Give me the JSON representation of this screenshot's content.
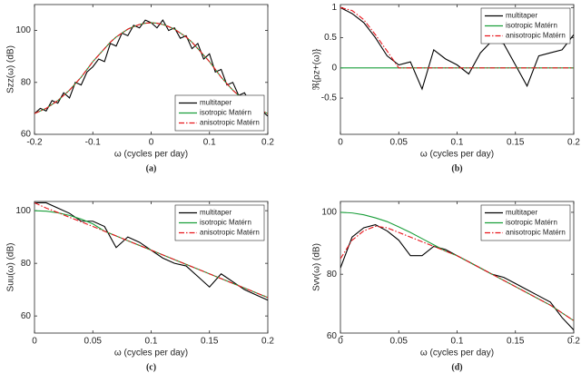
{
  "chart_data": [
    {
      "type": "line",
      "caption": "(a)",
      "xlabel": "ω (cycles per day)",
      "ylabel": "Szz(ω) (dB)",
      "x": [
        -0.2,
        -0.19,
        -0.18,
        -0.17,
        -0.16,
        -0.15,
        -0.14,
        -0.13,
        -0.12,
        -0.11,
        -0.1,
        -0.09,
        -0.08,
        -0.07,
        -0.06,
        -0.05,
        -0.04,
        -0.03,
        -0.02,
        -0.01,
        0,
        0.01,
        0.02,
        0.03,
        0.04,
        0.05,
        0.06,
        0.07,
        0.08,
        0.09,
        0.1,
        0.11,
        0.12,
        0.13,
        0.14,
        0.15,
        0.16,
        0.17,
        0.18,
        0.19,
        0.2
      ],
      "series": [
        {
          "name": "multitaper",
          "color": "#000000",
          "linestyle": "solid",
          "values": [
            68,
            70,
            69,
            73,
            72,
            76,
            74,
            80,
            79,
            84,
            86,
            89,
            88,
            95,
            94,
            99,
            98,
            102,
            101,
            104,
            103,
            101,
            104,
            100,
            101,
            97,
            98,
            93,
            95,
            89,
            91,
            84,
            85,
            79,
            80,
            75,
            76,
            72,
            72,
            69,
            67
          ]
        },
        {
          "name": "isotropic Matérn",
          "color": "#1a9e3a",
          "linestyle": "solid",
          "values": [
            68,
            69,
            70,
            71.5,
            73,
            75,
            77,
            79.5,
            82,
            85,
            88,
            90.5,
            93,
            95.5,
            97.5,
            99,
            100.5,
            101.5,
            102.3,
            102.8,
            103,
            102.8,
            102.3,
            101.5,
            100.5,
            99,
            97.5,
            95.5,
            93,
            90.5,
            88,
            85,
            82,
            79.5,
            77,
            75,
            73,
            71.5,
            70,
            69,
            68
          ]
        },
        {
          "name": "anisotropic Matérn",
          "color": "#e8161c",
          "linestyle": "dashdot",
          "values": [
            68,
            69,
            70,
            71.5,
            73,
            75,
            77,
            79.5,
            82,
            85,
            88,
            90.5,
            93,
            95.5,
            97.5,
            99,
            100.5,
            101.5,
            102.3,
            102.8,
            103,
            102.8,
            102.3,
            101.5,
            100.5,
            99,
            97.5,
            95.5,
            93,
            90.5,
            88,
            85,
            82,
            79.5,
            77,
            75,
            73,
            71.5,
            70,
            69,
            68
          ]
        }
      ],
      "xlim": [
        -0.2,
        0.2
      ],
      "ylim": [
        60,
        110
      ],
      "xticks": [
        -0.2,
        -0.1,
        0,
        0.1,
        0.2
      ],
      "yticks": [
        60,
        80,
        100
      ],
      "legend": "lower right"
    },
    {
      "type": "line",
      "caption": "(b)",
      "xlabel": "ω (cycles per day)",
      "ylabel": "ℜ{ρz+(ω)}",
      "x": [
        0,
        0.01,
        0.02,
        0.03,
        0.04,
        0.05,
        0.06,
        0.07,
        0.08,
        0.09,
        0.1,
        0.11,
        0.12,
        0.13,
        0.14,
        0.15,
        0.16,
        0.17,
        0.18,
        0.19,
        0.2
      ],
      "series": [
        {
          "name": "multitaper",
          "color": "#000000",
          "linestyle": "solid",
          "values": [
            1,
            0.9,
            0.75,
            0.5,
            0.2,
            0.05,
            0.1,
            -0.35,
            0.3,
            0.15,
            0.05,
            -0.1,
            0.25,
            0.45,
            0.4,
            0.05,
            -0.3,
            0.2,
            0.25,
            0.3,
            0.55
          ]
        },
        {
          "name": "isotropic Matérn",
          "color": "#1a9e3a",
          "linestyle": "solid",
          "values": [
            0,
            0,
            0,
            0,
            0,
            0,
            0,
            0,
            0,
            0,
            0,
            0,
            0,
            0,
            0,
            0,
            0,
            0,
            0,
            0,
            0
          ]
        },
        {
          "name": "anisotropic Matérn",
          "color": "#e8161c",
          "linestyle": "dashdot",
          "values": [
            1,
            0.95,
            0.8,
            0.55,
            0.28,
            0,
            0,
            0,
            0,
            0,
            0,
            0,
            0,
            0,
            0,
            0,
            0,
            0,
            0,
            0,
            0
          ]
        }
      ],
      "xlim": [
        0,
        0.2
      ],
      "ylim": [
        -1.1,
        1.05
      ],
      "xticks": [
        0,
        0.05,
        0.1,
        0.15,
        0.2
      ],
      "yticks": [
        -0.5,
        0,
        0.5,
        1
      ],
      "legend": "upper right"
    },
    {
      "type": "line",
      "caption": "(c)",
      "xlabel": "ω (cycles per day)",
      "ylabel": "Suu(ω) (dB)",
      "x": [
        0,
        0.01,
        0.02,
        0.03,
        0.04,
        0.05,
        0.06,
        0.07,
        0.08,
        0.09,
        0.1,
        0.11,
        0.12,
        0.13,
        0.14,
        0.15,
        0.16,
        0.17,
        0.18,
        0.19,
        0.2
      ],
      "series": [
        {
          "name": "multitaper",
          "color": "#000000",
          "linestyle": "solid",
          "values": [
            103,
            103,
            101,
            99,
            96,
            96,
            94,
            86,
            90,
            88,
            85,
            82,
            80,
            79,
            75,
            71,
            76,
            73,
            70,
            68,
            66
          ]
        },
        {
          "name": "isotropic Matérn",
          "color": "#1a9e3a",
          "linestyle": "solid",
          "values": [
            100,
            99.8,
            99.2,
            98.2,
            96.8,
            95,
            92.2,
            90.4,
            88.6,
            86.8,
            85,
            83.2,
            81.4,
            79.6,
            77.8,
            76,
            74.2,
            72.4,
            70.6,
            68.8,
            67
          ]
        },
        {
          "name": "anisotropic Matérn",
          "color": "#e8161c",
          "linestyle": "dashdot",
          "values": [
            103,
            101,
            99.3,
            97.5,
            95.8,
            94,
            92.2,
            90.4,
            88.6,
            86.8,
            85,
            83.2,
            81.4,
            79.6,
            77.8,
            76,
            74.2,
            72.4,
            70.6,
            68.8,
            67
          ]
        }
      ],
      "xlim": [
        0,
        0.2
      ],
      "ylim": [
        53.5,
        103.5
      ],
      "xticks": [
        0,
        0.05,
        0.1,
        0.15,
        0.2
      ],
      "yticks": [
        60,
        80,
        100
      ],
      "legend": "upper right"
    },
    {
      "type": "line",
      "caption": "(d)",
      "xlabel": "ω (cycles per day)",
      "ylabel": "Svv(ω) (dB)",
      "x": [
        0,
        0.01,
        0.02,
        0.03,
        0.04,
        0.05,
        0.06,
        0.07,
        0.08,
        0.09,
        0.1,
        0.11,
        0.12,
        0.13,
        0.14,
        0.15,
        0.16,
        0.17,
        0.18,
        0.19,
        0.2
      ],
      "series": [
        {
          "name": "multitaper",
          "color": "#000000",
          "linestyle": "solid",
          "values": [
            82,
            92,
            95,
            96,
            94,
            91,
            86,
            86,
            89,
            88,
            86,
            84,
            82,
            80,
            79,
            77,
            75,
            73,
            71,
            66,
            62
          ]
        },
        {
          "name": "isotropic Matérn",
          "color": "#1a9e3a",
          "linestyle": "solid",
          "values": [
            100,
            99.8,
            99.2,
            98.2,
            97,
            95.3,
            93.5,
            91.5,
            89.5,
            87.5,
            86,
            84,
            82,
            80,
            78,
            76,
            74,
            72,
            70,
            67.5,
            65
          ]
        },
        {
          "name": "anisotropic Matérn",
          "color": "#e8161c",
          "linestyle": "dashdot",
          "values": [
            85,
            91,
            94,
            95.5,
            95,
            93.5,
            92,
            90.5,
            89,
            87.5,
            86,
            84,
            82,
            80,
            78,
            76,
            74,
            72,
            70,
            67.5,
            65
          ]
        }
      ],
      "xlim": [
        0,
        0.2
      ],
      "ylim": [
        61,
        103.5
      ],
      "xticks": [
        0,
        0.05,
        0.1,
        0.15,
        0.2
      ],
      "yticks": [
        60,
        80,
        100
      ],
      "legend": "upper right"
    }
  ]
}
